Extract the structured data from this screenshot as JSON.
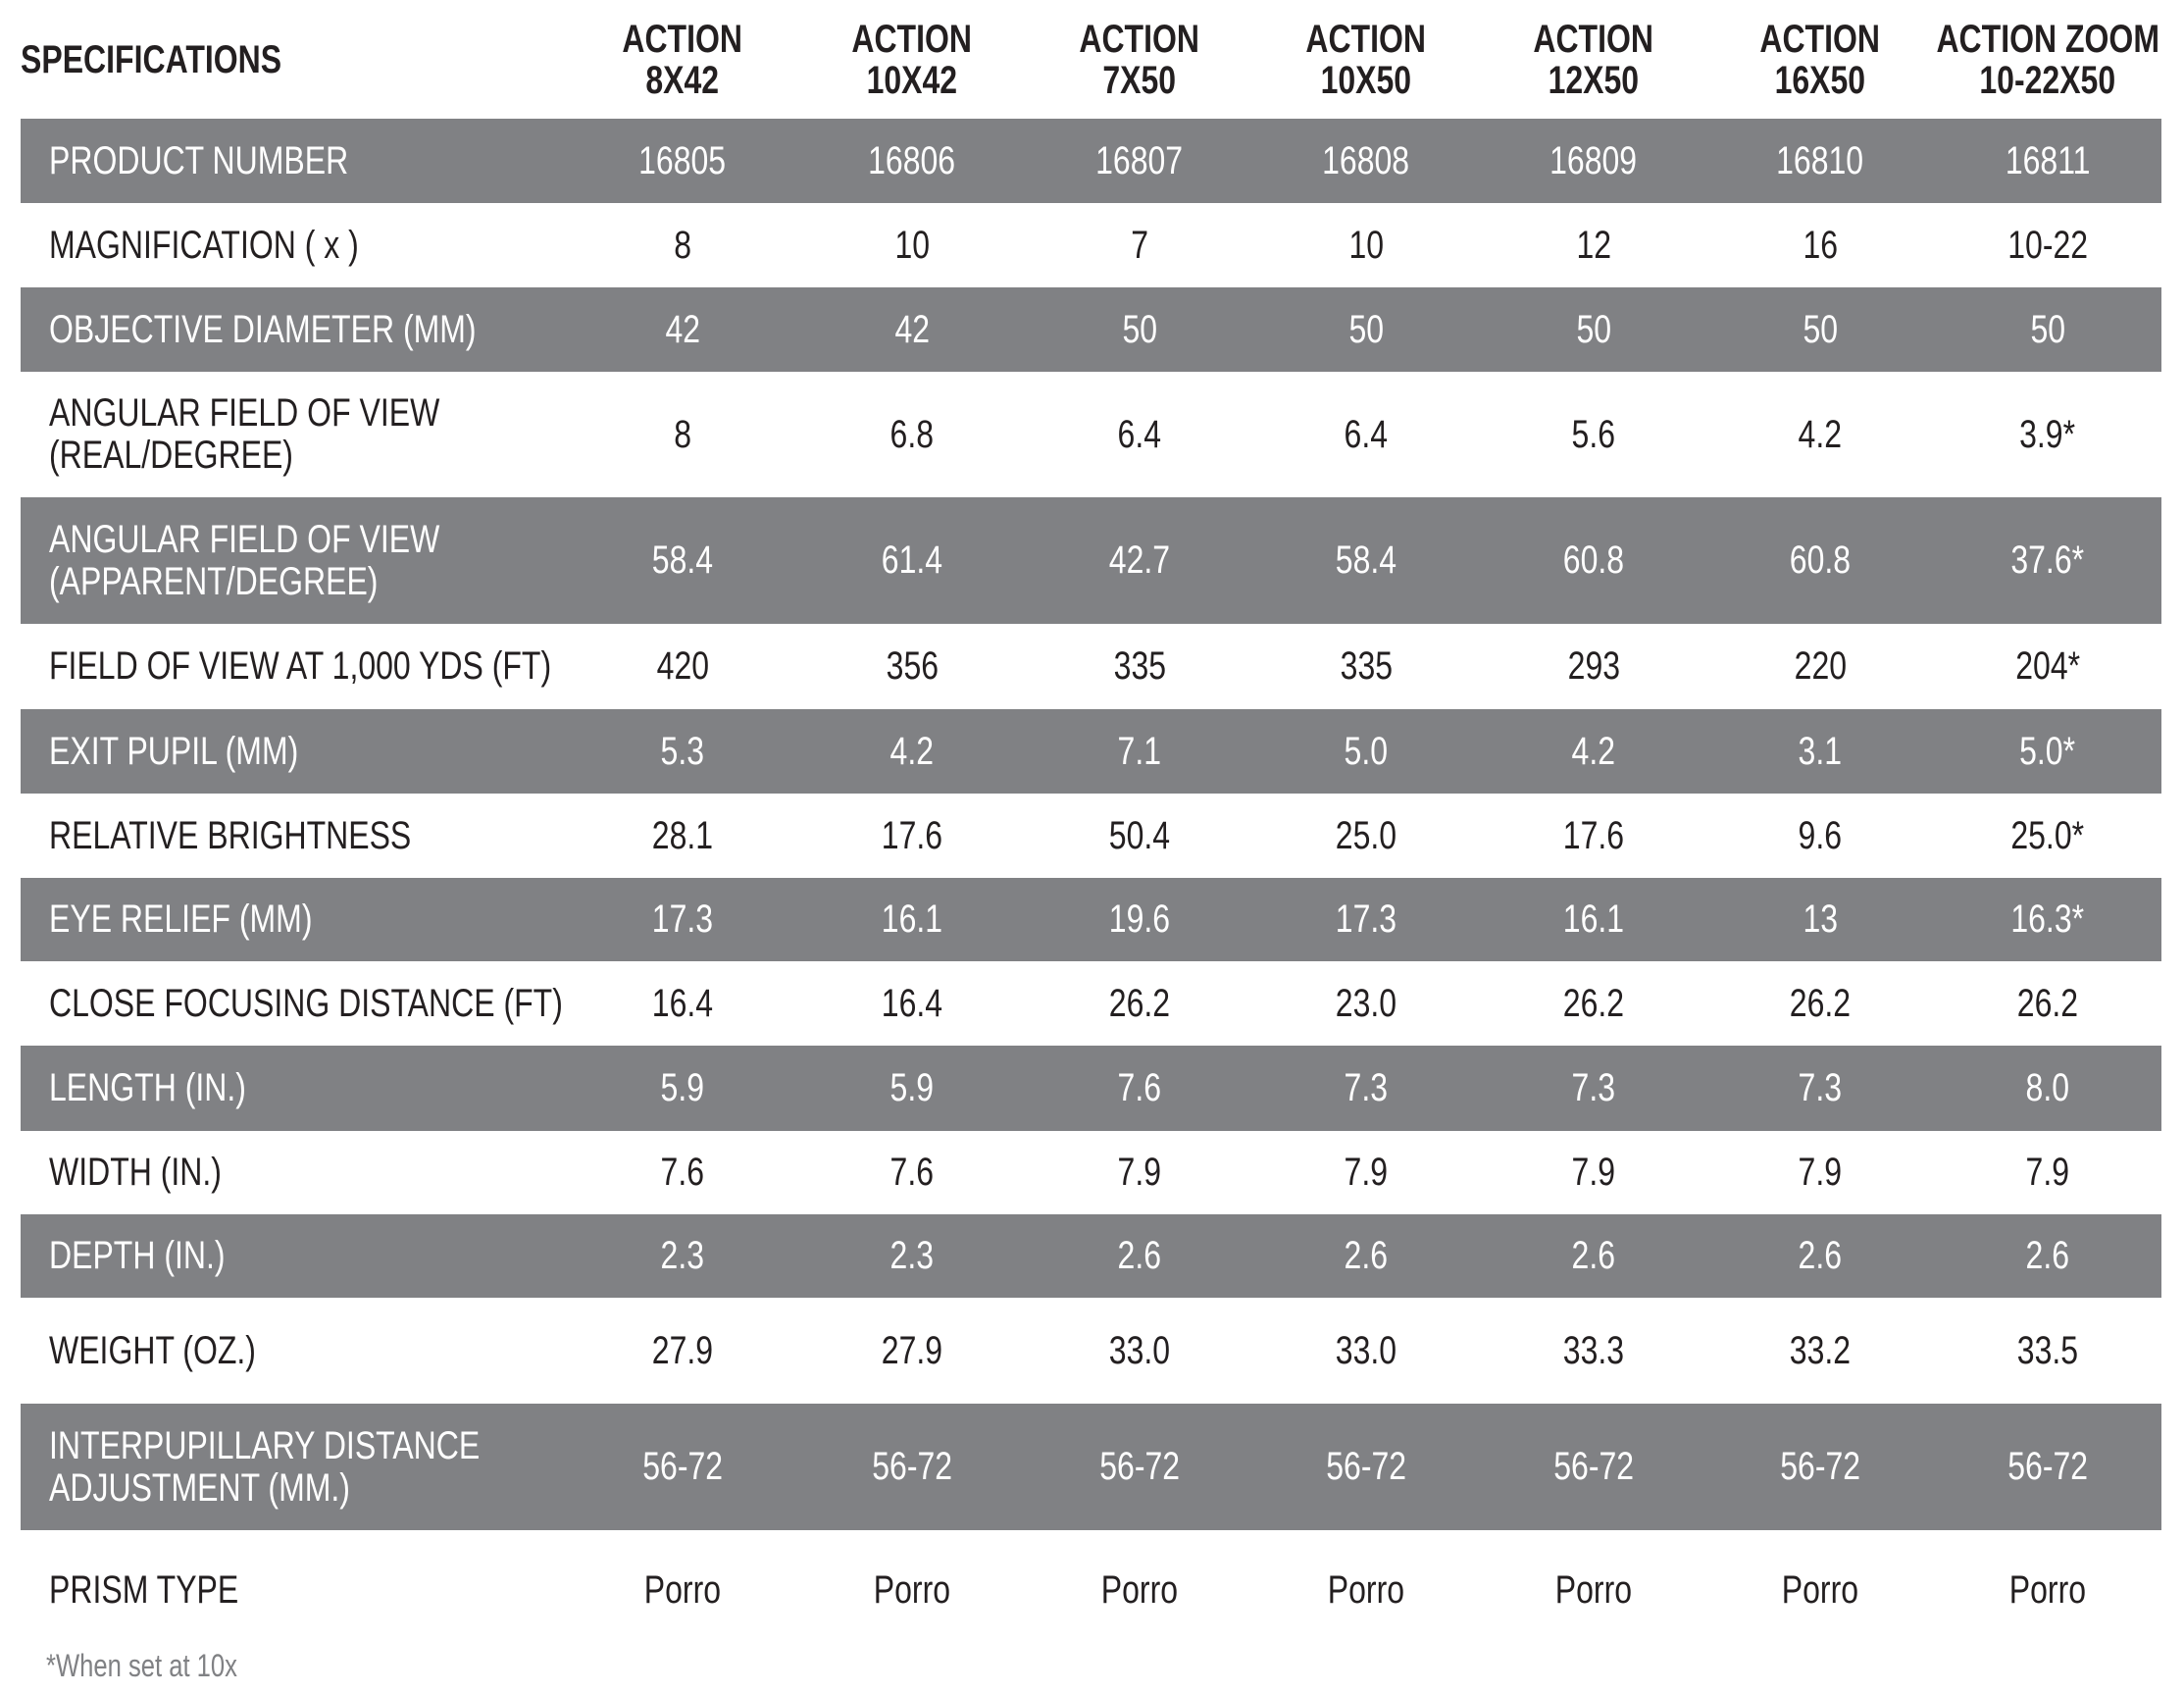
{
  "table": {
    "corner": "SPECIFICATIONS",
    "columns": [
      [
        "ACTION",
        "8X42"
      ],
      [
        "ACTION",
        "10X42"
      ],
      [
        "ACTION",
        "7X50"
      ],
      [
        "ACTION",
        "10X50"
      ],
      [
        "ACTION",
        "12X50"
      ],
      [
        "ACTION",
        "16X50"
      ],
      [
        "ACTION ZOOM",
        "10-22X50"
      ]
    ],
    "rows": [
      {
        "label": [
          "PRODUCT NUMBER"
        ],
        "values": [
          "16805",
          "16806",
          "16807",
          "16808",
          "16809",
          "16810",
          "16811"
        ]
      },
      {
        "label": [
          "MAGNIFICATION ( x )"
        ],
        "values": [
          "8",
          "10",
          "7",
          "10",
          "12",
          "16",
          "10-22"
        ]
      },
      {
        "label": [
          "OBJECTIVE DIAMETER (MM)"
        ],
        "values": [
          "42",
          "42",
          "50",
          "50",
          "50",
          "50",
          "50"
        ]
      },
      {
        "label": [
          "ANGULAR FIELD OF VIEW",
          "(REAL/DEGREE)"
        ],
        "values": [
          "8",
          "6.8",
          "6.4",
          "6.4",
          "5.6",
          "4.2",
          "3.9*"
        ]
      },
      {
        "label": [
          "ANGULAR FIELD OF VIEW",
          "(APPARENT/DEGREE)"
        ],
        "values": [
          "58.4",
          "61.4",
          "42.7",
          "58.4",
          "60.8",
          "60.8",
          "37.6*"
        ]
      },
      {
        "label": [
          "FIELD OF VIEW AT 1,000 YDS (FT)"
        ],
        "values": [
          "420",
          "356",
          "335",
          "335",
          "293",
          "220",
          "204*"
        ]
      },
      {
        "label": [
          "EXIT PUPIL (MM)"
        ],
        "values": [
          "5.3",
          "4.2",
          "7.1",
          "5.0",
          "4.2",
          "3.1",
          "5.0*"
        ]
      },
      {
        "label": [
          "RELATIVE BRIGHTNESS"
        ],
        "values": [
          "28.1",
          "17.6",
          "50.4",
          "25.0",
          "17.6",
          "9.6",
          "25.0*"
        ]
      },
      {
        "label": [
          "EYE RELIEF (MM)"
        ],
        "values": [
          "17.3",
          "16.1",
          "19.6",
          "17.3",
          "16.1",
          "13",
          "16.3*"
        ]
      },
      {
        "label": [
          "CLOSE FOCUSING DISTANCE (FT)"
        ],
        "values": [
          "16.4",
          "16.4",
          "26.2",
          "23.0",
          "26.2",
          "26.2",
          "26.2"
        ]
      },
      {
        "label": [
          "LENGTH (IN.)"
        ],
        "values": [
          "5.9",
          "5.9",
          "7.6",
          "7.3",
          "7.3",
          "7.3",
          "8.0"
        ]
      },
      {
        "label": [
          "WIDTH (IN.)"
        ],
        "values": [
          "7.6",
          "7.6",
          "7.9",
          "7.9",
          "7.9",
          "7.9",
          "7.9"
        ]
      },
      {
        "label": [
          "DEPTH (IN.)"
        ],
        "values": [
          "2.3",
          "2.3",
          "2.6",
          "2.6",
          "2.6",
          "2.6",
          "2.6"
        ]
      },
      {
        "label": [
          "WEIGHT (OZ.)"
        ],
        "values": [
          "27.9",
          "27.9",
          "33.0",
          "33.0",
          "33.3",
          "33.2",
          "33.5"
        ]
      },
      {
        "label": [
          "INTERPUPILLARY DISTANCE",
          "ADJUSTMENT (MM.)"
        ],
        "values": [
          "56-72",
          "56-72",
          "56-72",
          "56-72",
          "56-72",
          "56-72",
          "56-72"
        ]
      },
      {
        "label": [
          "PRISM TYPE"
        ],
        "values": [
          "Porro",
          "Porro",
          "Porro",
          "Porro",
          "Porro",
          "Porro",
          "Porro"
        ]
      }
    ],
    "footnote": "*When set at 10x"
  }
}
